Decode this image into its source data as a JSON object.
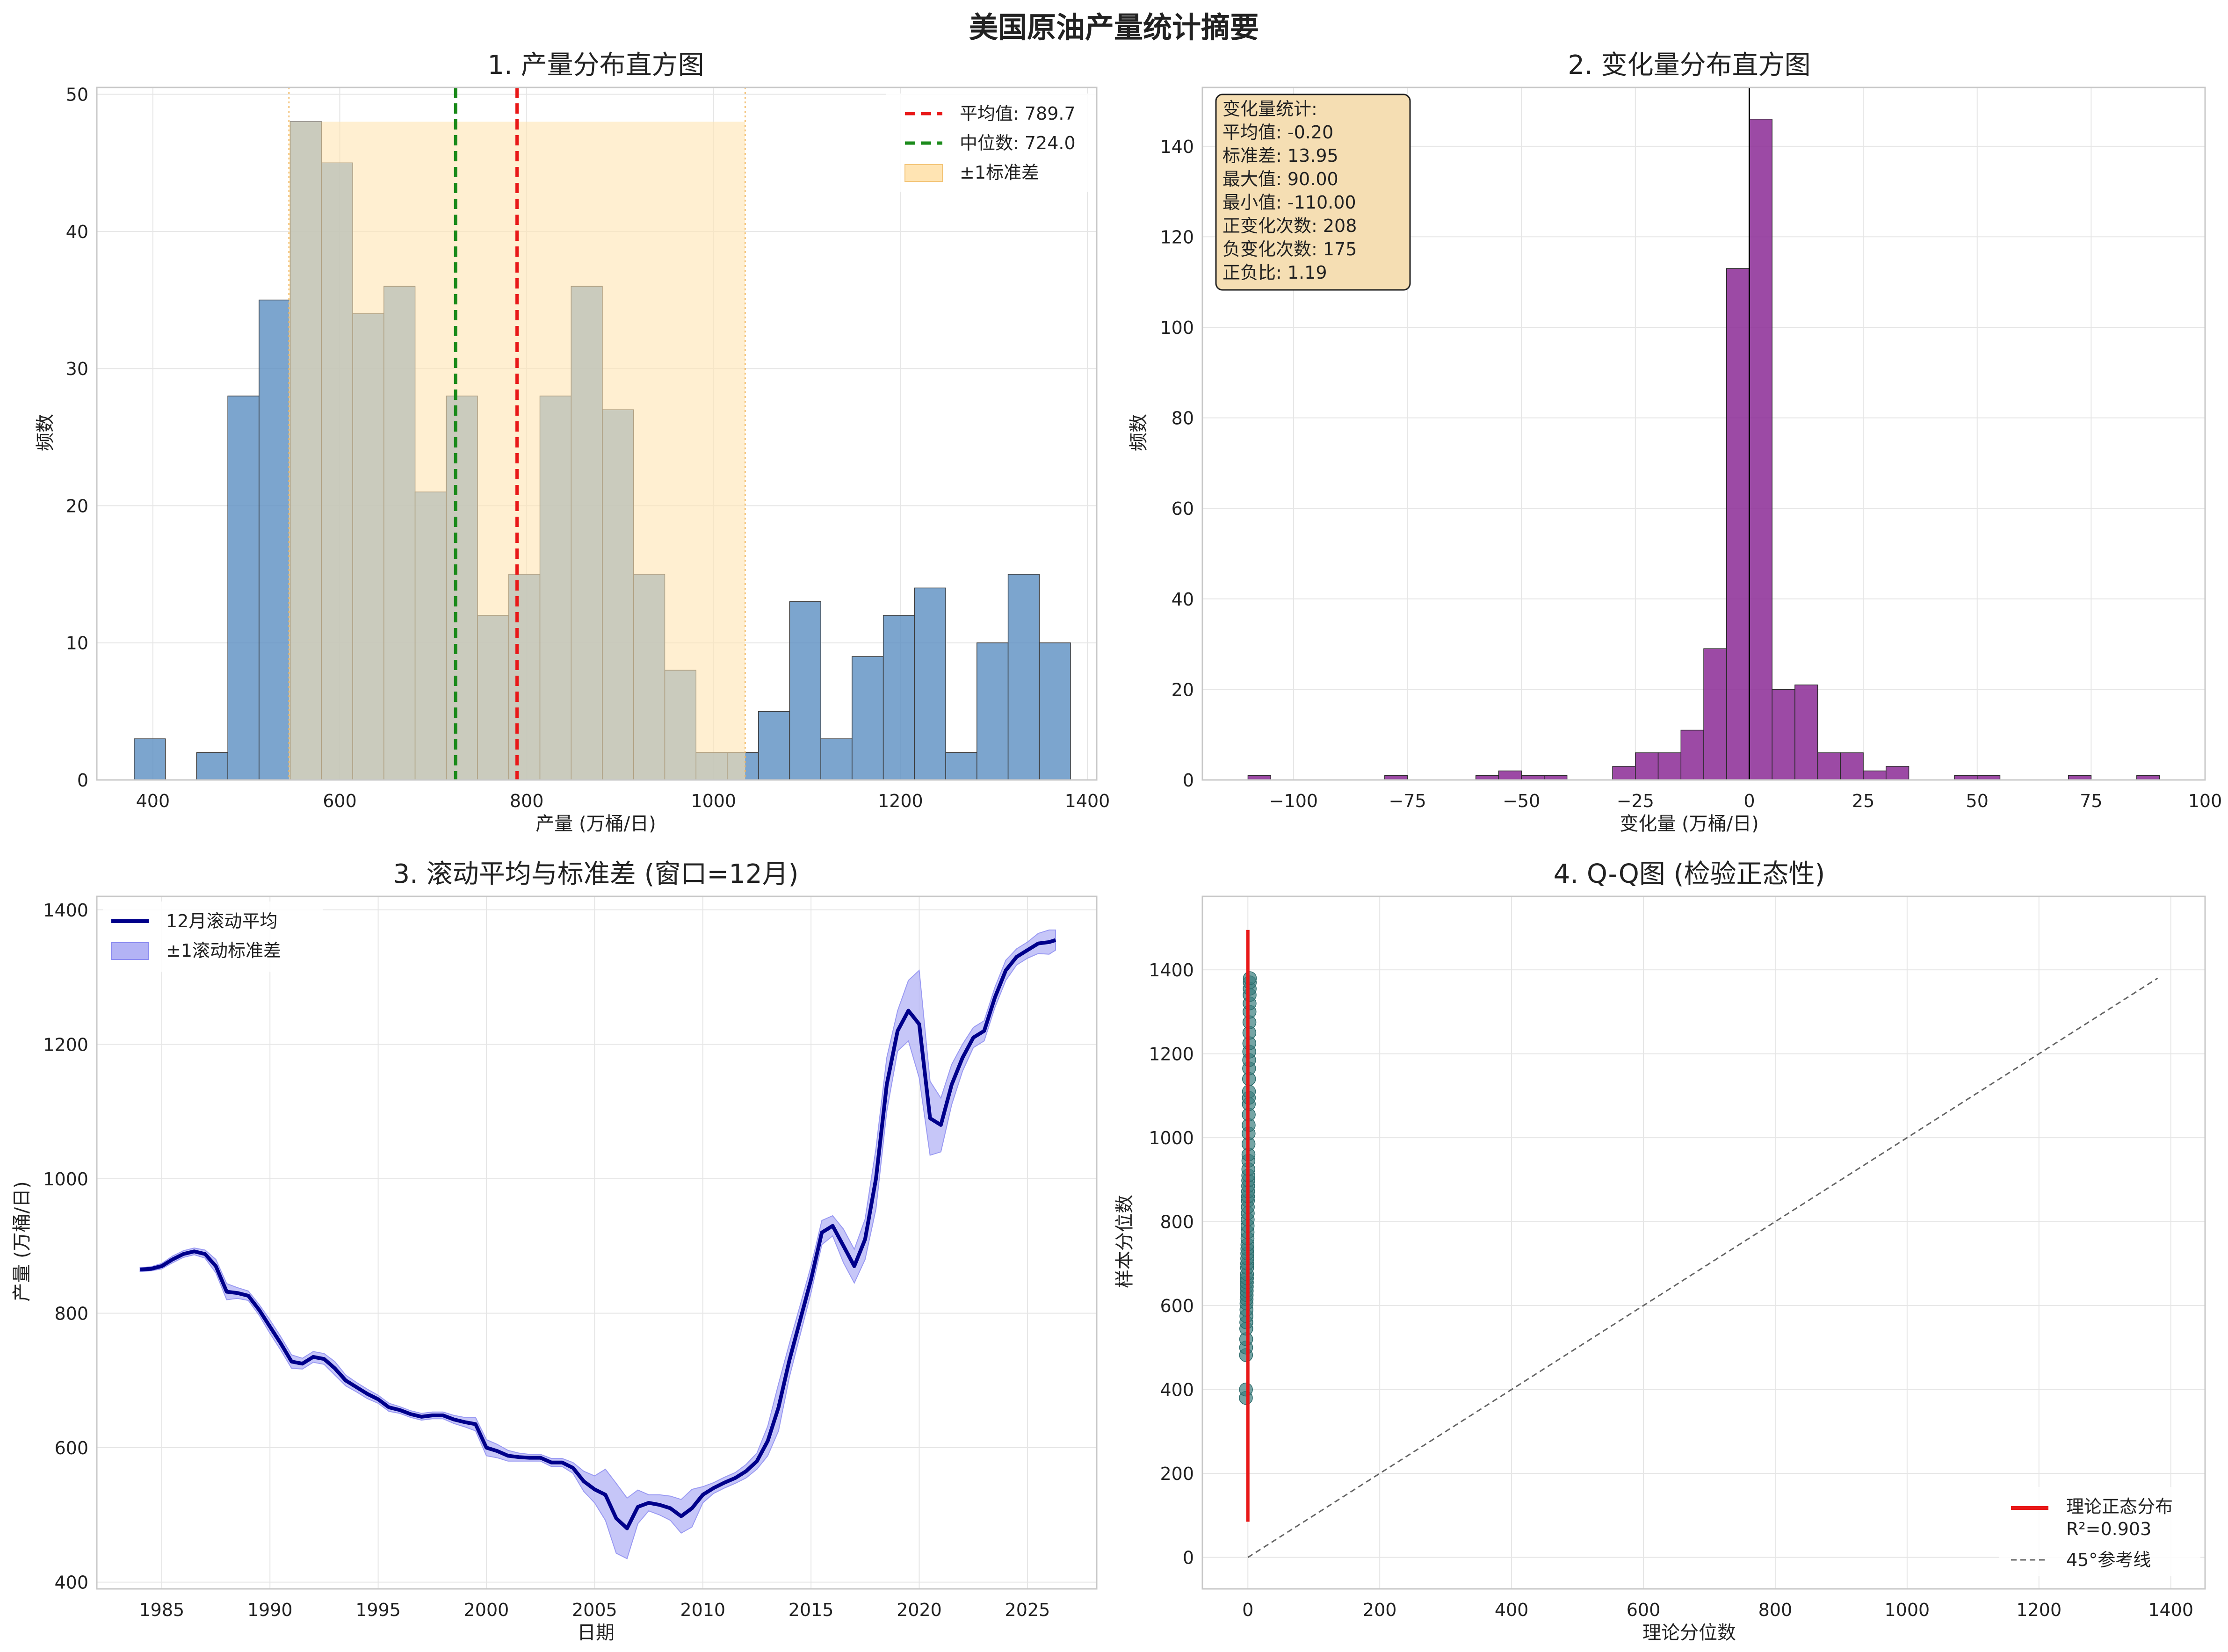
{
  "figure": {
    "title": "美国原油产量统计摘要"
  },
  "colors": {
    "hist_blue": "#5b8fc2",
    "hist_purple": "#8b2a95",
    "std_band": "#ffe4b3",
    "mean_line": "#e81818",
    "median_line": "#1a8a1a",
    "rolling_line": "#00008b",
    "rolling_band": "#b3b3f5",
    "qq_points": "#3a7f7f",
    "qq_fit": "#e81818",
    "reference": "#666666"
  },
  "chart_data": [
    {
      "type": "bar",
      "subtype": "histogram",
      "title": "1. 产量分布直方图",
      "xlabel": "产量 (万桶/日)",
      "ylabel": "频数",
      "xlim": [
        340,
        1410
      ],
      "ylim": [
        0,
        50.5
      ],
      "xticks": [
        400,
        600,
        800,
        1000,
        1200,
        1400
      ],
      "yticks": [
        0,
        10,
        20,
        30,
        40,
        50
      ],
      "bin_start": 380,
      "bin_width": 33.4,
      "counts": [
        3,
        0,
        2,
        28,
        35,
        48,
        45,
        34,
        36,
        21,
        28,
        12,
        15,
        28,
        36,
        27,
        15,
        8,
        2,
        2,
        5,
        13,
        3,
        9,
        12,
        14,
        2,
        10,
        15,
        10
      ],
      "mean": 789.7,
      "median": 724.0,
      "std_band": [
        545.6,
        1033.8
      ],
      "legend": {
        "position": "upper right",
        "items": [
          {
            "label": "平均值: 789.7",
            "kind": "dash",
            "color_key": "mean_line"
          },
          {
            "label": "中位数: 724.0",
            "kind": "dash",
            "color_key": "median_line"
          },
          {
            "label": "±1标准差",
            "kind": "patch",
            "color_key": "std_band"
          }
        ]
      },
      "grid": true
    },
    {
      "type": "bar",
      "subtype": "histogram",
      "title": "2. 变化量分布直方图",
      "xlabel": "变化量 (万桶/日)",
      "ylabel": "频数",
      "xlim": [
        -120,
        100
      ],
      "ylim": [
        0,
        153
      ],
      "xticks": [
        -100,
        -75,
        -50,
        -25,
        0,
        25,
        50,
        75,
        100
      ],
      "yticks": [
        0,
        20,
        40,
        60,
        80,
        100,
        120,
        140
      ],
      "bin_start": -110,
      "bin_width": 5,
      "counts": [
        1,
        0,
        0,
        0,
        0,
        0,
        1,
        0,
        0,
        0,
        1,
        2,
        1,
        1,
        0,
        0,
        3,
        6,
        6,
        11,
        29,
        113,
        146,
        20,
        21,
        6,
        6,
        2,
        3,
        0,
        0,
        1,
        1,
        0,
        0,
        0,
        1,
        0,
        0,
        1
      ],
      "zero_line": 0,
      "stats": {
        "title": "变化量统计:",
        "lines": [
          "平均值: -0.20",
          "标准差: 13.95",
          "最大值: 90.00",
          "最小值: -110.00",
          "正变化次数: 208",
          "负变化次数: 175",
          "正负比: 1.19"
        ]
      },
      "grid": true
    },
    {
      "type": "line",
      "title": "3. 滚动平均与标准差 (窗口=12月)",
      "xlabel": "日期",
      "ylabel": "产量 (万桶/日)",
      "xlim": [
        1982.0,
        2028.2
      ],
      "ylim": [
        390,
        1420
      ],
      "xticks": [
        1985,
        1990,
        1995,
        2000,
        2005,
        2010,
        2015,
        2020,
        2025
      ],
      "yticks": [
        400,
        600,
        800,
        1000,
        1200,
        1400
      ],
      "x": [
        1984.0,
        1984.5,
        1985.0,
        1985.5,
        1986.0,
        1986.5,
        1987.0,
        1987.5,
        1988.0,
        1988.5,
        1989.0,
        1989.5,
        1990.0,
        1990.5,
        1991.0,
        1991.5,
        1992.0,
        1992.5,
        1993.0,
        1993.5,
        1994.0,
        1994.5,
        1995.0,
        1995.5,
        1996.0,
        1996.5,
        1997.0,
        1997.5,
        1998.0,
        1998.5,
        1999.0,
        1999.5,
        2000.0,
        2000.5,
        2001.0,
        2001.5,
        2002.0,
        2002.5,
        2003.0,
        2003.5,
        2004.0,
        2004.5,
        2005.0,
        2005.5,
        2006.0,
        2006.5,
        2007.0,
        2007.5,
        2008.0,
        2008.5,
        2009.0,
        2009.5,
        2010.0,
        2010.5,
        2011.0,
        2011.5,
        2012.0,
        2012.5,
        2013.0,
        2013.5,
        2014.0,
        2014.5,
        2015.0,
        2015.5,
        2016.0,
        2016.5,
        2017.0,
        2017.5,
        2018.0,
        2018.5,
        2019.0,
        2019.5,
        2020.0,
        2020.5,
        2021.0,
        2021.5,
        2022.0,
        2022.5,
        2023.0,
        2023.5,
        2024.0,
        2024.5,
        2025.0,
        2025.5,
        2026.0,
        2026.3
      ],
      "series": [
        {
          "name": "12月滚动平均",
          "values": [
            865,
            866,
            870,
            880,
            888,
            892,
            888,
            870,
            832,
            830,
            826,
            805,
            780,
            755,
            728,
            725,
            735,
            732,
            718,
            700,
            690,
            680,
            672,
            660,
            656,
            650,
            646,
            648,
            648,
            642,
            638,
            635,
            600,
            595,
            588,
            586,
            585,
            585,
            578,
            578,
            570,
            550,
            538,
            530,
            495,
            480,
            512,
            518,
            515,
            510,
            498,
            510,
            530,
            540,
            548,
            555,
            565,
            580,
            610,
            660,
            730,
            790,
            850,
            920,
            930,
            900,
            870,
            910,
            1000,
            1140,
            1220,
            1250,
            1230,
            1090,
            1080,
            1140,
            1180,
            1210,
            1220,
            1270,
            1310,
            1330,
            1340,
            1350,
            1352,
            1355
          ]
        }
      ],
      "band": {
        "name": "±1滚动标准差",
        "halfwidth": [
          3,
          3,
          4,
          5,
          5,
          5,
          6,
          10,
          12,
          8,
          7,
          8,
          10,
          10,
          10,
          8,
          8,
          8,
          10,
          8,
          7,
          7,
          6,
          6,
          5,
          5,
          5,
          5,
          5,
          6,
          7,
          10,
          12,
          10,
          8,
          6,
          5,
          5,
          6,
          6,
          8,
          15,
          20,
          38,
          52,
          45,
          25,
          12,
          15,
          18,
          25,
          28,
          12,
          8,
          8,
          8,
          10,
          12,
          22,
          35,
          25,
          22,
          20,
          18,
          15,
          25,
          25,
          30,
          45,
          40,
          30,
          45,
          80,
          55,
          40,
          30,
          20,
          15,
          15,
          15,
          15,
          12,
          12,
          15,
          18,
          15
        ]
      },
      "legend": {
        "position": "upper left",
        "items": [
          {
            "label": "12月滚动平均",
            "kind": "line",
            "color_key": "rolling_line"
          },
          {
            "label": "±1滚动标准差",
            "kind": "patch",
            "color_key": "rolling_band"
          }
        ]
      },
      "grid": true
    },
    {
      "type": "scatter",
      "title": "4. Q-Q图 (检验正态性)",
      "xlabel": "理论分位数",
      "ylabel": "样本分位数",
      "xlim": [
        -69,
        1452
      ],
      "ylim": [
        -75,
        1575
      ],
      "xticks": [
        0,
        200,
        400,
        600,
        800,
        1000,
        1200,
        1400
      ],
      "yticks": [
        0,
        200,
        400,
        600,
        800,
        1000,
        1200,
        1400
      ],
      "points": {
        "x_range": [
          -3,
          3
        ],
        "y": [
          380,
          400,
          482,
          500,
          520,
          545,
          560,
          575,
          590,
          605,
          615,
          625,
          635,
          645,
          655,
          665,
          675,
          690,
          700,
          712,
          724,
          735,
          745,
          760,
          775,
          790,
          805,
          820,
          835,
          850,
          860,
          872,
          885,
          898,
          910,
          925,
          945,
          960,
          985,
          1010,
          1030,
          1055,
          1080,
          1095,
          1110,
          1140,
          1165,
          1185,
          1205,
          1225,
          1250,
          1275,
          1300,
          1320,
          1340,
          1355,
          1370,
          1380
        ]
      },
      "fit_line": {
        "x": [
          0,
          0
        ],
        "y": [
          85,
          1495
        ]
      },
      "reference_line": {
        "x": [
          0,
          1380
        ],
        "y": [
          0,
          1380
        ]
      },
      "legend": {
        "position": "lower right",
        "items": [
          {
            "label": "理论正态分布",
            "label2": "R²=0.903",
            "kind": "line",
            "color_key": "qq_fit"
          },
          {
            "label": "45°参考线",
            "kind": "dash",
            "color_key": "reference"
          }
        ]
      },
      "grid": true
    }
  ]
}
